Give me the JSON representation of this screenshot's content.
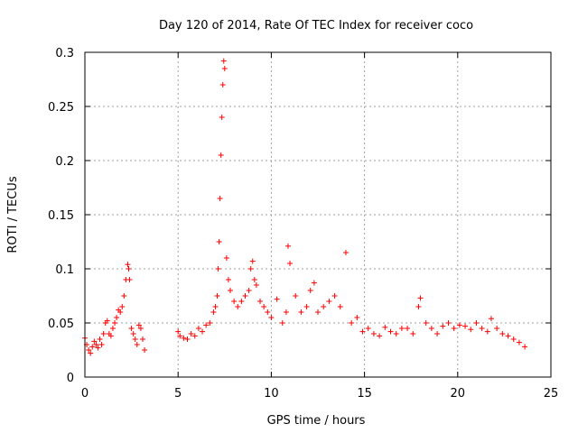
{
  "chart_data": {
    "type": "scatter",
    "title": "Day 120 of 2014, Rate Of TEC Index for receiver coco",
    "xlabel": "GPS time / hours",
    "ylabel": "ROTI / TECUs",
    "xlim": [
      0,
      25
    ],
    "ylim": [
      0,
      0.3
    ],
    "x_ticks": [
      0,
      5,
      10,
      15,
      20,
      25
    ],
    "x_tick_labels": [
      "0",
      "5",
      "10",
      "15",
      "20",
      "25"
    ],
    "y_ticks": [
      0,
      0.05,
      0.1,
      0.15,
      0.2,
      0.25,
      0.3
    ],
    "y_tick_labels": [
      "0",
      "0.05",
      "0.1",
      "0.15",
      "0.2",
      "0.25",
      "0.3"
    ],
    "grid": true,
    "marker": "+",
    "marker_color": "#ff0000",
    "series": [
      {
        "name": "ROTI",
        "x": [
          0.0,
          0.1,
          0.2,
          0.3,
          0.4,
          0.5,
          0.6,
          0.7,
          0.8,
          0.9,
          1.0,
          1.1,
          1.2,
          1.3,
          1.4,
          1.5,
          1.6,
          1.7,
          1.8,
          1.9,
          2.0,
          2.1,
          2.2,
          2.3,
          2.35,
          2.4,
          2.5,
          2.6,
          2.7,
          2.8,
          2.9,
          3.0,
          3.1,
          3.2,
          5.0,
          5.1,
          5.3,
          5.5,
          5.7,
          5.9,
          6.1,
          6.3,
          6.5,
          6.7,
          6.9,
          7.0,
          7.1,
          7.15,
          7.2,
          7.25,
          7.3,
          7.35,
          7.4,
          7.45,
          7.5,
          7.6,
          7.7,
          7.8,
          8.0,
          8.2,
          8.4,
          8.6,
          8.8,
          8.9,
          9.0,
          9.1,
          9.2,
          9.4,
          9.6,
          9.8,
          10.0,
          10.3,
          10.6,
          10.8,
          10.9,
          11.0,
          11.3,
          11.6,
          11.9,
          12.1,
          12.3,
          12.5,
          12.8,
          13.1,
          13.4,
          13.7,
          14.0,
          14.3,
          14.6,
          14.9,
          15.2,
          15.5,
          15.8,
          16.1,
          16.4,
          16.7,
          17.0,
          17.3,
          17.6,
          17.9,
          18.0,
          18.3,
          18.6,
          18.9,
          19.2,
          19.5,
          19.8,
          20.1,
          20.4,
          20.7,
          21.0,
          21.3,
          21.6,
          21.8,
          22.1,
          22.4,
          22.7,
          23.0,
          23.3,
          23.6
        ],
        "y": [
          0.036,
          0.03,
          0.025,
          0.022,
          0.028,
          0.033,
          0.03,
          0.027,
          0.035,
          0.03,
          0.04,
          0.05,
          0.052,
          0.04,
          0.038,
          0.045,
          0.05,
          0.055,
          0.062,
          0.06,
          0.065,
          0.075,
          0.09,
          0.104,
          0.1,
          0.09,
          0.045,
          0.04,
          0.035,
          0.03,
          0.048,
          0.045,
          0.035,
          0.025,
          0.042,
          0.038,
          0.036,
          0.035,
          0.04,
          0.038,
          0.045,
          0.042,
          0.048,
          0.05,
          0.06,
          0.065,
          0.075,
          0.1,
          0.125,
          0.165,
          0.205,
          0.24,
          0.27,
          0.292,
          0.285,
          0.11,
          0.09,
          0.08,
          0.07,
          0.065,
          0.07,
          0.075,
          0.08,
          0.1,
          0.107,
          0.09,
          0.085,
          0.07,
          0.065,
          0.06,
          0.055,
          0.072,
          0.05,
          0.06,
          0.121,
          0.105,
          0.075,
          0.06,
          0.065,
          0.08,
          0.087,
          0.06,
          0.065,
          0.07,
          0.075,
          0.065,
          0.115,
          0.05,
          0.055,
          0.042,
          0.045,
          0.04,
          0.038,
          0.046,
          0.042,
          0.04,
          0.045,
          0.045,
          0.04,
          0.065,
          0.073,
          0.05,
          0.045,
          0.04,
          0.047,
          0.05,
          0.045,
          0.048,
          0.047,
          0.044,
          0.05,
          0.045,
          0.042,
          0.054,
          0.045,
          0.04,
          0.038,
          0.035,
          0.032,
          0.028
        ]
      }
    ]
  }
}
